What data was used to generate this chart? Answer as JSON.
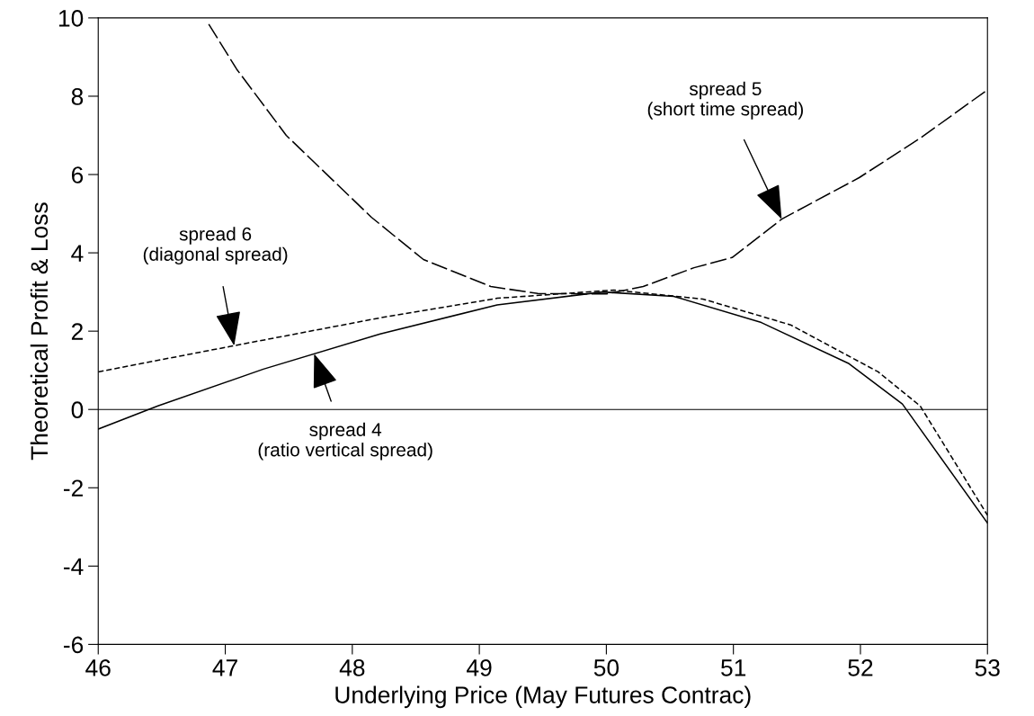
{
  "chart_data": {
    "type": "line",
    "xlabel": "Underlying Price (May Futures Contrac)",
    "ylabel": "Theoretical Profit & Loss",
    "xlim": [
      46,
      53
    ],
    "ylim": [
      -6,
      10
    ],
    "xticks": [
      46,
      47,
      48,
      49,
      50,
      51,
      52,
      53
    ],
    "yticks": [
      -6,
      -4,
      -2,
      0,
      2,
      4,
      6,
      8,
      10
    ],
    "grid": false,
    "legend": false,
    "marker": "none",
    "series": [
      {
        "color": "#000000",
        "line_style": "solid",
        "x": [
          46,
          46.47,
          47.3,
          48.22,
          49.14,
          49.97,
          50.53,
          51.22,
          51.91,
          52.33,
          53
        ],
        "values": [
          -0.5,
          0.09,
          1.03,
          1.93,
          2.67,
          3.0,
          2.89,
          2.22,
          1.17,
          0.14,
          -2.9
        ]
      },
      {
        "color": "#000000",
        "line_style": "dashed",
        "x": [
          46.87,
          47.09,
          47.48,
          48.15,
          48.56,
          49.09,
          49.46,
          50.0,
          50.29,
          50.69,
          50.99,
          51.38,
          51.99,
          52.48,
          52.99
        ],
        "values": [
          9.84,
          8.69,
          7.0,
          4.91,
          3.83,
          3.14,
          2.96,
          2.95,
          3.14,
          3.62,
          3.88,
          4.86,
          5.92,
          6.95,
          8.14
        ]
      },
      {
        "color": "#000000",
        "line_style": "dotted",
        "x": [
          46,
          47.07,
          48.22,
          49.14,
          50.06,
          50.76,
          51.45,
          52.14,
          52.47,
          53
        ],
        "values": [
          0.96,
          1.63,
          2.34,
          2.84,
          3.05,
          2.82,
          2.16,
          0.96,
          0.09,
          -2.7
        ]
      }
    ],
    "ref_lines": [
      {
        "axis": "y",
        "value": 0,
        "color": "#000000",
        "line_style": "solid"
      }
    ],
    "annotations": [
      {
        "text": "spread 6\n(diagonal spread)",
        "x": 47.07,
        "y": 1.63
      },
      {
        "text": "spread 4\n(ratio vertical spread)",
        "x": 47.7,
        "y": 1.42
      },
      {
        "text": "spread 5\n(short time spread)",
        "x": 51.38,
        "y": 4.86
      }
    ]
  }
}
